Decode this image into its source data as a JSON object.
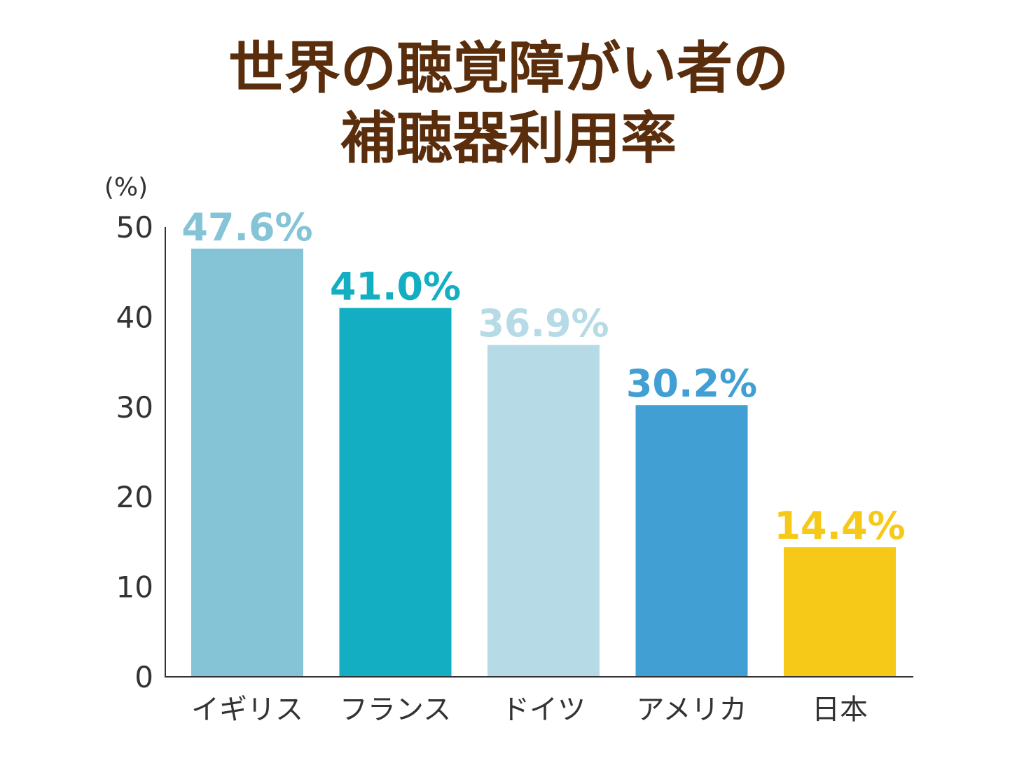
{
  "title_lines": [
    "世界の聴覚障がい者の",
    "補聴器利用率"
  ],
  "chart_data": {
    "type": "bar",
    "title": "世界の聴覚障がい者の補聴器利用率",
    "unit_label": "(%)",
    "categories": [
      "イギリス",
      "フランス",
      "ドイツ",
      "アメリカ",
      "日本"
    ],
    "values": [
      47.6,
      41.0,
      36.9,
      30.2,
      14.4
    ],
    "value_labels": [
      "47.6%",
      "41.0%",
      "36.9%",
      "30.2%",
      "14.4%"
    ],
    "colors": [
      "#85c4d6",
      "#13aec2",
      "#b6dbe7",
      "#419fd3",
      "#f6c918"
    ],
    "ylim": [
      0,
      50
    ],
    "yticks": [
      0,
      10,
      20,
      30,
      40,
      50
    ],
    "grid": false,
    "legend": "none"
  }
}
